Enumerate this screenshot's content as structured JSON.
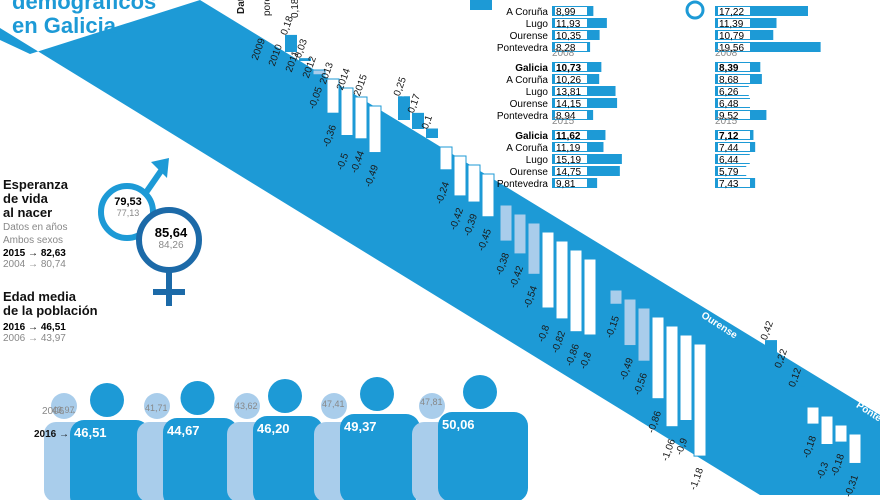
{
  "title": {
    "line1": "demográficos",
    "line2": "en Galicia"
  },
  "band_header": {
    "label1": "Dat",
    "label2": "porc",
    "first_value": "0,18"
  },
  "chart_data": [
    {
      "type": "bar",
      "title": "",
      "categories": [
        "2009",
        "2010",
        "2011",
        "2012",
        "2013",
        "2014",
        "2015"
      ],
      "series": [
        {
          "name": "Galicia",
          "values": [
            0.18,
            0.03,
            -0.05,
            -0.36,
            -0.5,
            -0.44,
            -0.49
          ]
        },
        {
          "name": "A Coruña",
          "values": [
            0.25,
            0.17,
            0.1,
            -0.24,
            -0.42,
            -0.39,
            -0.45
          ]
        },
        {
          "name": "Lugo",
          "values": [
            -0.38,
            -0.42,
            -0.54,
            -0.8,
            -0.82,
            -0.86,
            -0.8
          ]
        },
        {
          "name": "Ourense",
          "values": [
            -0.15,
            -0.49,
            -0.56,
            -0.86,
            -1.06,
            -0.9,
            -1.18
          ]
        },
        {
          "name": "Pontevedra",
          "values": [
            0.42,
            0.22,
            0.12,
            -0.18,
            -0.3,
            -0.18,
            -0.31
          ]
        }
      ]
    },
    {
      "type": "bar",
      "title": "",
      "groups": [
        {
          "year": "",
          "rows": [
            {
              "name": "A Coruña",
              "value": 8.99
            },
            {
              "name": "Lugo",
              "value": 11.93
            },
            {
              "name": "Ourense",
              "value": 10.35
            },
            {
              "name": "Pontevedra",
              "value": 8.28
            }
          ]
        },
        {
          "year": "2008",
          "rows": [
            {
              "name": "Galicia",
              "value": 10.73
            },
            {
              "name": "A Coruña",
              "value": 10.26
            },
            {
              "name": "Lugo",
              "value": 13.81
            },
            {
              "name": "Ourense",
              "value": 14.15
            },
            {
              "name": "Pontevedra",
              "value": 8.94
            }
          ]
        },
        {
          "year": "2015",
          "rows": [
            {
              "name": "Galicia",
              "value": 11.62
            },
            {
              "name": "A Coruña",
              "value": 11.19
            },
            {
              "name": "Lugo",
              "value": 15.19
            },
            {
              "name": "Ourense",
              "value": 14.75
            },
            {
              "name": "Pontevedra",
              "value": 9.81
            }
          ]
        }
      ]
    },
    {
      "type": "bar",
      "title": "",
      "groups": [
        {
          "year": "",
          "values": [
            17.22,
            11.39,
            10.79,
            19.56
          ]
        },
        {
          "year": "2008",
          "values": [
            8.39,
            8.68,
            6.26,
            6.48,
            9.52
          ]
        },
        {
          "year": "2015",
          "values": [
            7.12,
            7.44,
            6.44,
            5.79,
            7.43
          ]
        }
      ]
    }
  ],
  "value_labels": {
    "Galicia": [
      "0,18",
      "0,03",
      "-0,05",
      "-0,36",
      "-0,5",
      "-0,44",
      "-0,49"
    ],
    "A Coruña": [
      "0,25",
      "0,17",
      "0,1",
      "-0,24",
      "-0,42",
      "-0,39",
      "-0,45"
    ],
    "Lugo": [
      "-0,38",
      "-0,42",
      "-0,54",
      "-0,8",
      "-0,82",
      "-0,86",
      "-0,8"
    ],
    "Ourense": [
      "-0,15",
      "-0,49",
      "-0,56",
      "-0,86",
      "-1,06",
      "-0,9",
      "-1,18"
    ],
    "Pontevedra": [
      "0,42",
      "0,22",
      "0,12",
      "-0,18",
      "-0,3",
      "-0,18",
      "-0,31"
    ]
  },
  "panel_labels": {
    "left": [
      [
        "A Coruña",
        "8,99"
      ],
      [
        "Lugo",
        "11,93"
      ],
      [
        "Ourense",
        "10,35"
      ],
      [
        "Pontevedra",
        "8,28"
      ],
      [
        "Galicia",
        "10,73"
      ],
      [
        "A Coruña",
        "10,26"
      ],
      [
        "Lugo",
        "13,81"
      ],
      [
        "Ourense",
        "14,15"
      ],
      [
        "Pontevedra",
        "8,94"
      ],
      [
        "Galicia",
        "11,62"
      ],
      [
        "A Coruña",
        "11,19"
      ],
      [
        "Lugo",
        "15,19"
      ],
      [
        "Ourense",
        "14,75"
      ],
      [
        "Pontevedra",
        "9,81"
      ]
    ],
    "right": [
      "17,22",
      "11,39",
      "10,79",
      "19,56",
      "8,39",
      "8,68",
      "6,26",
      "6,48",
      "9,52",
      "7,12",
      "7,44",
      "6,44",
      "5,79",
      "7,43"
    ]
  },
  "life": {
    "heading1": "Esperanza",
    "heading2": "de vida",
    "heading3": "al nacer",
    "unit": "Datos en años",
    "both": "Ambos sexos",
    "y2015": "2015",
    "v2015": "82,63",
    "y2004": "2004",
    "v2004": "80,74",
    "male_now": "79,53",
    "male_prev": "77,13",
    "female_now": "85,64",
    "female_prev": "84,26"
  },
  "age": {
    "heading1": "Edad media",
    "heading2": "de la población",
    "y2016": "2016",
    "v2016": "46,51",
    "y2006": "2006",
    "v2006": "43,97",
    "figures": [
      {
        "y2006": "43,97",
        "y2016": "46,51"
      },
      {
        "y2006": "41,71",
        "y2016": "44,67"
      },
      {
        "y2006": "43,62",
        "y2016": "46,20"
      },
      {
        "y2006": "47,41",
        "y2016": "49,37"
      },
      {
        "y2006": "47,81",
        "y2016": "50,06"
      }
    ]
  },
  "colors": {
    "blue": "#1d9ad6",
    "light": "#a9cdeb",
    "dark": "#1c6aa8",
    "grey": "#9aa3ab"
  }
}
